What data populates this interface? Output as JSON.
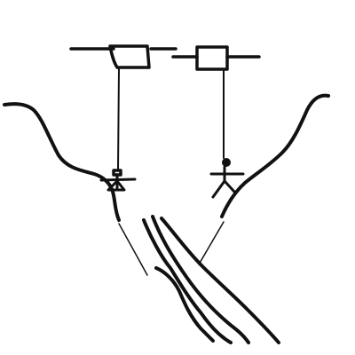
{
  "drawing": {
    "background_color": "#ffffff",
    "ink_color": "#111111",
    "elements": [
      "canyon-walls",
      "left-anchor-bar",
      "left-box",
      "left-rope",
      "left-figure",
      "right-anchor-bar",
      "right-box",
      "right-rope",
      "right-figure",
      "crevasse-lines"
    ]
  }
}
